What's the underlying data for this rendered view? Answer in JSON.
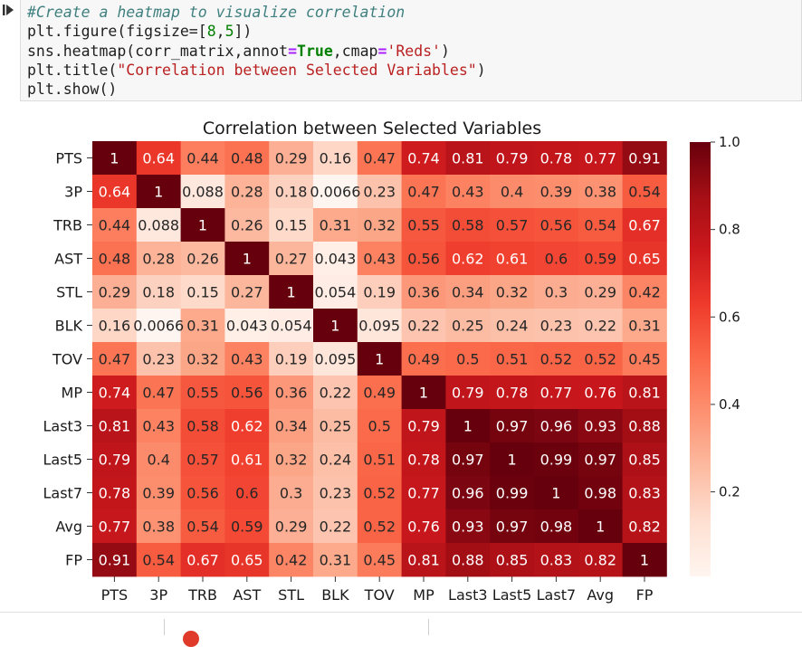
{
  "code": {
    "line1": "#Create a heatmap to visualize correlation",
    "line2": {
      "t1": "plt.figure(figsize=[",
      "n1": "8",
      "t2": ",",
      "n2": "5",
      "t3": "])"
    },
    "line3": {
      "t1": "sns.heatmap(corr_matrix,annot",
      "op1": "=",
      "kw": "True",
      "t2": ",cmap",
      "op2": "=",
      "str": "'Reds'",
      "t3": ")"
    },
    "line4": {
      "t1": "plt.title(",
      "str": "\"Correlation between Selected Variables\"",
      "t2": ")"
    },
    "line5": "plt.show()"
  },
  "colors": {
    "cmap": [
      "#fff5f0",
      "#fee0d2",
      "#fcbba1",
      "#fc9272",
      "#fb6a4a",
      "#ef3b2c",
      "#cb181d",
      "#a50f15",
      "#67000d"
    ]
  },
  "chart_data": {
    "type": "heatmap",
    "title": "Correlation between Selected Variables",
    "variables": [
      "PTS",
      "3P",
      "TRB",
      "AST",
      "STL",
      "BLK",
      "TOV",
      "MP",
      "Last3",
      "Last5",
      "Last7",
      "Avg",
      "FP"
    ],
    "values": [
      [
        1,
        0.64,
        0.44,
        0.48,
        0.29,
        0.16,
        0.47,
        0.74,
        0.81,
        0.79,
        0.78,
        0.77,
        0.91
      ],
      [
        0.64,
        1,
        0.088,
        0.28,
        0.18,
        0.0066,
        0.23,
        0.47,
        0.43,
        0.4,
        0.39,
        0.38,
        0.54
      ],
      [
        0.44,
        0.088,
        1,
        0.26,
        0.15,
        0.31,
        0.32,
        0.55,
        0.58,
        0.57,
        0.56,
        0.54,
        0.67
      ],
      [
        0.48,
        0.28,
        0.26,
        1,
        0.27,
        0.043,
        0.43,
        0.56,
        0.62,
        0.61,
        0.6,
        0.59,
        0.65
      ],
      [
        0.29,
        0.18,
        0.15,
        0.27,
        1,
        0.054,
        0.19,
        0.36,
        0.34,
        0.32,
        0.3,
        0.29,
        0.42
      ],
      [
        0.16,
        0.0066,
        0.31,
        0.043,
        0.054,
        1,
        0.095,
        0.22,
        0.25,
        0.24,
        0.23,
        0.22,
        0.31
      ],
      [
        0.47,
        0.23,
        0.32,
        0.43,
        0.19,
        0.095,
        1,
        0.49,
        0.5,
        0.51,
        0.52,
        0.52,
        0.45
      ],
      [
        0.74,
        0.47,
        0.55,
        0.56,
        0.36,
        0.22,
        0.49,
        1,
        0.79,
        0.78,
        0.77,
        0.76,
        0.81
      ],
      [
        0.81,
        0.43,
        0.58,
        0.62,
        0.34,
        0.25,
        0.5,
        0.79,
        1,
        0.97,
        0.96,
        0.93,
        0.88
      ],
      [
        0.79,
        0.4,
        0.57,
        0.61,
        0.32,
        0.24,
        0.51,
        0.78,
        0.97,
        1,
        0.99,
        0.97,
        0.85
      ],
      [
        0.78,
        0.39,
        0.56,
        0.6,
        0.3,
        0.23,
        0.52,
        0.77,
        0.96,
        0.99,
        1,
        0.98,
        0.83
      ],
      [
        0.77,
        0.38,
        0.54,
        0.59,
        0.29,
        0.22,
        0.52,
        0.76,
        0.93,
        0.97,
        0.98,
        1,
        0.82
      ],
      [
        0.91,
        0.54,
        0.67,
        0.65,
        0.42,
        0.31,
        0.45,
        0.81,
        0.88,
        0.85,
        0.83,
        0.82,
        1
      ]
    ],
    "colorbar": {
      "range": [
        0.0066,
        1.0
      ],
      "ticks": [
        0.2,
        0.4,
        0.6,
        0.8,
        1.0
      ],
      "tick_labels": [
        "0.2",
        "0.4",
        "0.6",
        "0.8",
        "1.0"
      ]
    }
  }
}
